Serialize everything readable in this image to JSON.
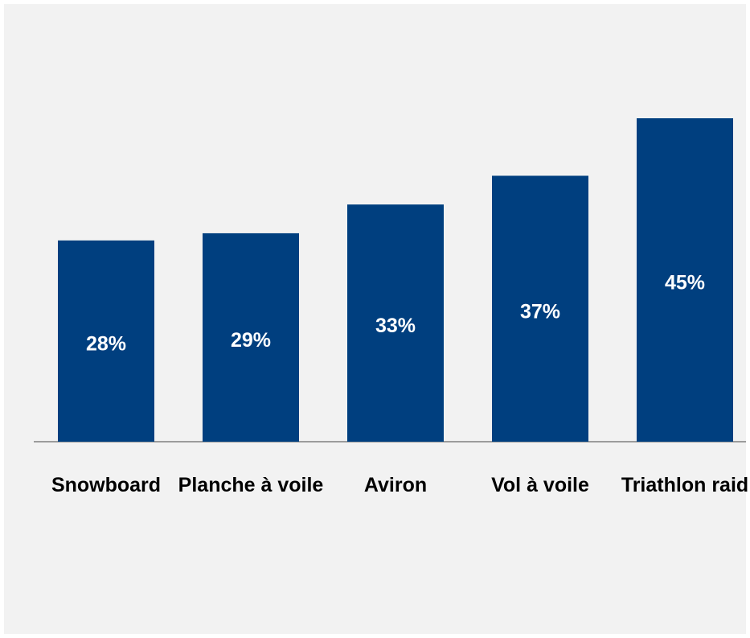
{
  "chart_data": {
    "type": "bar",
    "categories": [
      "Snowboard",
      "Planche à voile",
      "Aviron",
      "Vol à voile",
      "Triathlon raid"
    ],
    "values": [
      28,
      29,
      33,
      37,
      45
    ],
    "value_labels": [
      "28%",
      "29%",
      "33%",
      "37%",
      "45%"
    ],
    "color": "#003f7f"
  }
}
